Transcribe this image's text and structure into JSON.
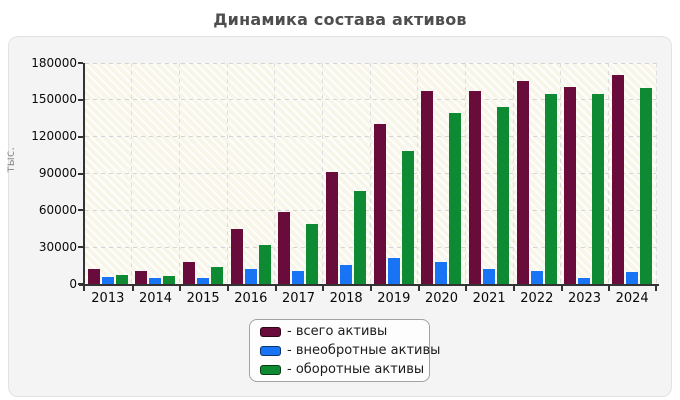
{
  "title": "Динамика состава активов",
  "chart_data": {
    "type": "bar",
    "title": "Динамика состава активов",
    "xlabel": "",
    "ylabel": "тыс.",
    "ylim": [
      0,
      180000
    ],
    "ytick_step": 30000,
    "grid": true,
    "legend_position": "bottom-center",
    "plot_background": "hatched-cream",
    "categories": [
      "2013",
      "2014",
      "2015",
      "2016",
      "2017",
      "2018",
      "2019",
      "2020",
      "2021",
      "2022",
      "2023",
      "2024"
    ],
    "series": [
      {
        "key": "total-assets",
        "name": "всего активы",
        "legend_label": "- всего активы",
        "color": "#6a0c3b",
        "values": [
          12000,
          11000,
          18000,
          44500,
          59000,
          91500,
          130000,
          157000,
          157000,
          165500,
          160500,
          170000
        ]
      },
      {
        "key": "non-current-assets",
        "name": "внеобротные активы",
        "legend_label": "- внеобротные активы",
        "color": "#1873f5",
        "values": [
          6000,
          5000,
          4500,
          12500,
          10500,
          15500,
          21000,
          18000,
          12500,
          10500,
          5000,
          10000
        ]
      },
      {
        "key": "current-assets",
        "name": "оборотные активы",
        "legend_label": "- оборотные активы",
        "color": "#0e8a32",
        "values": [
          7000,
          6500,
          14000,
          32000,
          48500,
          76000,
          108000,
          139500,
          144000,
          154500,
          155000,
          159500
        ]
      }
    ],
    "y_tick_labels": [
      "0",
      "30000",
      "60000",
      "90000",
      "120000",
      "150000",
      "180000"
    ]
  }
}
